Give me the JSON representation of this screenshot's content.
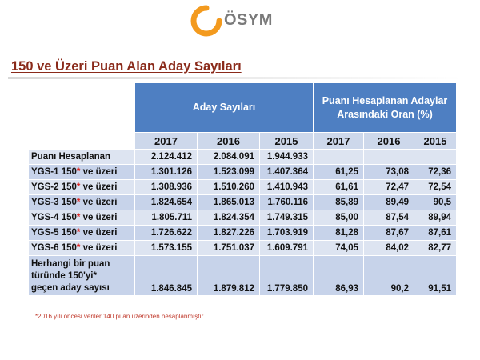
{
  "logo": {
    "text": "ÖSYM",
    "ring_color": "#f39a1e"
  },
  "title": "150 ve Üzeri Puan Alan Aday Sayıları",
  "table": {
    "group_headers": {
      "aday": "Aday Sayıları",
      "oran": "Puanı Hesaplanan Adaylar Arasındaki Oran (%)"
    },
    "years": [
      "2017",
      "2016",
      "2015",
      "2017",
      "2016",
      "2015"
    ],
    "rows": [
      {
        "label": "Puanı Hesaplanan",
        "star": "",
        "suffix": "",
        "values": [
          "2.124.412",
          "2.084.091",
          "1.944.933",
          "",
          "",
          ""
        ]
      },
      {
        "label": "YGS-1  150",
        "star": "*",
        "suffix": " ve üzeri",
        "values": [
          "1.301.126",
          "1.523.099",
          "1.407.364",
          "61,25",
          "73,08",
          "72,36"
        ]
      },
      {
        "label": "YGS-2  150",
        "star": "*",
        "suffix": " ve üzeri",
        "values": [
          "1.308.936",
          "1.510.260",
          "1.410.943",
          "61,61",
          "72,47",
          "72,54"
        ]
      },
      {
        "label": "YGS-3  150",
        "star": "*",
        "suffix": " ve üzeri",
        "values": [
          "1.824.654",
          "1.865.013",
          "1.760.116",
          "85,89",
          "89,49",
          "90,5"
        ]
      },
      {
        "label": "YGS-4  150",
        "star": "*",
        "suffix": " ve üzeri",
        "values": [
          "1.805.711",
          "1.824.354",
          "1.749.315",
          "85,00",
          "87,54",
          "89,94"
        ]
      },
      {
        "label": "YGS-5  150",
        "star": "*",
        "suffix": " ve üzeri",
        "values": [
          "1.726.622",
          "1.827.226",
          "1.703.919",
          "81,28",
          "87,67",
          "87,61"
        ]
      },
      {
        "label": "YGS-6  150",
        "star": "*",
        "suffix": " ve üzeri",
        "values": [
          "1.573.155",
          "1.751.037",
          "1.609.791",
          "74,05",
          "84,02",
          "82,77"
        ]
      }
    ],
    "last_row": {
      "label_lines": [
        "Herhangi bir puan",
        "türünde 150'yi*",
        "geçen aday sayısı"
      ],
      "values": [
        "1.846.845",
        "1.879.812",
        "1.779.850",
        "86,93",
        "90,2",
        "91,51"
      ]
    }
  },
  "footnote": "*2016 yılı öncesi veriler 140 puan üzerinden hesaplanmıştır.",
  "colors": {
    "header_blue": "#4e7fc2",
    "year_header": "#cdd8eb",
    "cell_light": "#dde4f1",
    "cell_alt": "#c7d3ea",
    "title_red": "#8a2a1a",
    "star_red": "#e0201c"
  }
}
